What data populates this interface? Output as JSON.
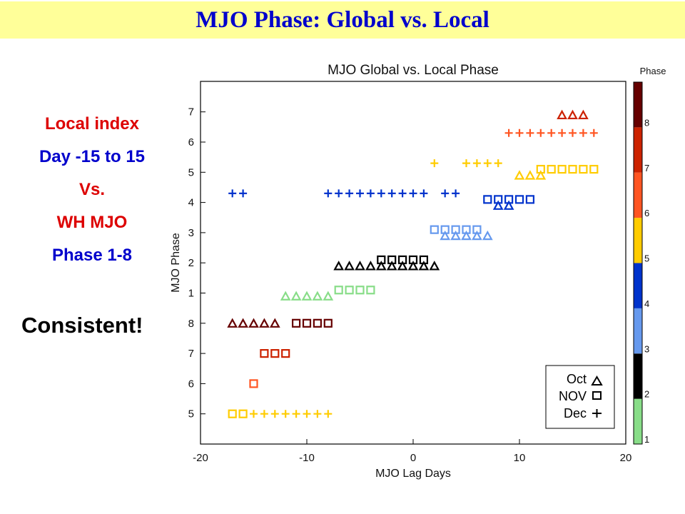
{
  "slide_title": "MJO Phase: Global vs. Local",
  "side_text": {
    "line1": "Local index",
    "line2": "Day -15 to 15",
    "line3": "Vs.",
    "line4": "WH MJO",
    "line5": "Phase 1-8",
    "conclusion": "Consistent!"
  },
  "colors": {
    "title_bg": "#ffff99",
    "title_text": "#0000cc",
    "red_text": "#dd0000",
    "blue_text": "#0000cc"
  },
  "chart_data": {
    "type": "scatter",
    "title": "MJO Global vs. Local Phase",
    "xlabel": "MJO Lag Days",
    "ylabel": "MJO Phase",
    "xlim": [
      -20,
      20
    ],
    "x_ticks": [
      "-20",
      "-10",
      "0",
      "10",
      "20"
    ],
    "y_ticks_lower": [
      "5",
      "6",
      "7",
      "8"
    ],
    "y_ticks_upper": [
      "1",
      "2",
      "3",
      "4",
      "5",
      "6",
      "7"
    ],
    "grid": false,
    "legend_position": "bottom-right",
    "legend": [
      {
        "label": "Oct",
        "marker": "triangle"
      },
      {
        "label": "NOV",
        "marker": "square"
      },
      {
        "label": "Dec",
        "marker": "plus"
      }
    ],
    "colorbar": {
      "title": "Phase",
      "labels": [
        "1",
        "2",
        "3",
        "4",
        "5",
        "6",
        "7",
        "8"
      ],
      "colors": [
        "#88dd88",
        "#000000",
        "#6699ee",
        "#0033cc",
        "#ffcc00",
        "#ff5522",
        "#cc2200",
        "#660000"
      ]
    },
    "points": [
      {
        "marker": "triangle",
        "phase": 8,
        "y": 8,
        "x": [
          -17,
          -16,
          -15,
          -14,
          -13
        ]
      },
      {
        "marker": "triangle",
        "phase": 1,
        "y": 0.9,
        "x": [
          -12,
          -11,
          -10,
          -9,
          -8
        ]
      },
      {
        "marker": "triangle",
        "phase": 2,
        "y": 1.9,
        "x": [
          -7,
          -6,
          -5,
          -4,
          -3,
          -2,
          -1,
          0,
          1,
          2
        ]
      },
      {
        "marker": "triangle",
        "phase": 3,
        "y": 2.9,
        "x": [
          3,
          4,
          5,
          6,
          7
        ]
      },
      {
        "marker": "triangle",
        "phase": 4,
        "y": 3.9,
        "x": [
          8,
          9
        ]
      },
      {
        "marker": "triangle",
        "phase": 5,
        "y": 4.9,
        "x": [
          10,
          11,
          12
        ]
      },
      {
        "marker": "triangle",
        "phase": 7,
        "y": 6.9,
        "x": [
          14,
          15,
          16
        ]
      },
      {
        "marker": "square",
        "phase": 5,
        "y": 5,
        "x": [
          -17,
          -16
        ]
      },
      {
        "marker": "square",
        "phase": 6,
        "y": 6,
        "x": [
          -15
        ]
      },
      {
        "marker": "square",
        "phase": 7,
        "y": 7,
        "x": [
          -14,
          -13,
          -12
        ]
      },
      {
        "marker": "square",
        "phase": 8,
        "y": 8,
        "x": [
          -11,
          -10,
          -9,
          -8
        ]
      },
      {
        "marker": "square",
        "phase": 1,
        "y": 1.1,
        "x": [
          -7,
          -6,
          -5,
          -4
        ]
      },
      {
        "marker": "square",
        "phase": 2,
        "y": 2.1,
        "x": [
          -3,
          -2,
          -1,
          0,
          1
        ]
      },
      {
        "marker": "square",
        "phase": 3,
        "y": 3.1,
        "x": [
          2,
          3,
          4,
          5,
          6
        ]
      },
      {
        "marker": "square",
        "phase": 4,
        "y": 4.1,
        "x": [
          7,
          8,
          9,
          10,
          11
        ]
      },
      {
        "marker": "square",
        "phase": 5,
        "y": 5.1,
        "x": [
          12,
          13,
          14,
          15,
          16,
          17
        ]
      },
      {
        "marker": "plus",
        "phase": 5,
        "y": 5,
        "x": [
          -15,
          -14,
          -13,
          -12,
          -11,
          -10,
          -9,
          -8
        ]
      },
      {
        "marker": "plus",
        "phase": 4,
        "y": 4.3,
        "x": [
          -17,
          -16,
          -8,
          -7,
          -6,
          -5,
          -4,
          -3,
          -2,
          -1,
          0,
          1,
          3,
          4
        ]
      },
      {
        "marker": "plus",
        "phase": 5,
        "y": 5.3,
        "x": [
          2,
          5,
          6,
          7,
          8
        ]
      },
      {
        "marker": "plus",
        "phase": 6,
        "y": 6.3,
        "x": [
          9,
          10,
          11,
          12,
          13,
          14,
          15,
          16,
          17
        ]
      }
    ]
  }
}
